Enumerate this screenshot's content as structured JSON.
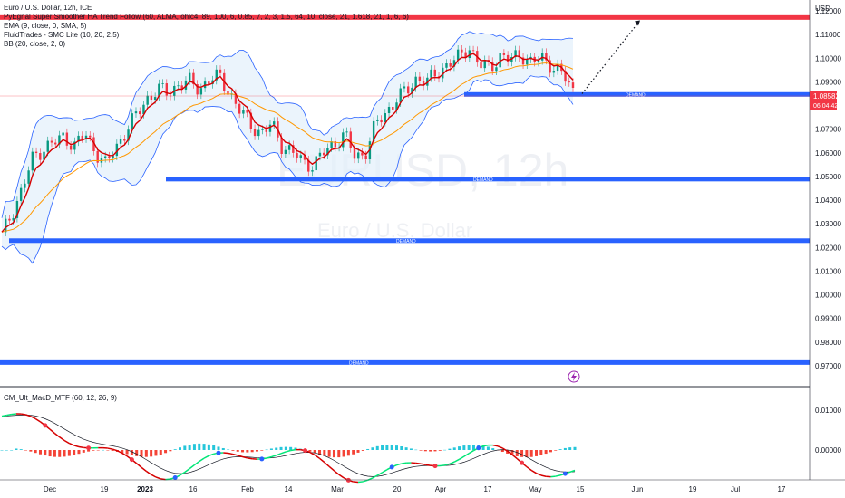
{
  "legend": {
    "title": "Euro / U.S. Dollar, 12h, ICE",
    "line2": "PyEgnal Super Smoother HA Trend Follow (60, ALMA, ohlc4, 89, 100, 6, 0.85, 7, 2, 3, 1.5, 64, 10, close, 21, 1.618, 21, 1, 6, 6)",
    "line3": "EMA (9, close, 0, SMA, 5)",
    "line4": "FluidTrades - SMC Lite  (10, 20, 2.5)",
    "line5": "BB (20, close, 2, 0)"
  },
  "watermark": {
    "symbol": "EURUSD, 12h",
    "name": "Euro / U.S. Dollar"
  },
  "price_label": {
    "value": "1.08582",
    "timer": "06:04:42"
  },
  "macd_label": "CM_Ult_MacD_MTF (60, 12, 26, 9)",
  "zone_label": "DEMAND",
  "colors": {
    "resistance": "#f23645",
    "demand": "#2962ff",
    "candle_up": "#089981",
    "candle_down": "#f23645",
    "ema": "#ff9800",
    "bb_line": "#2962ff",
    "bb_fill": "#e3effb",
    "smoother": "#d50000",
    "macd_line": "#d50000",
    "macd_line_up": "#00e676",
    "signal": "#131722",
    "hist_up": "#26c6da",
    "hist_down": "#f44336",
    "price_tag": "#f23645"
  },
  "chart_data": {
    "type": "candlestick",
    "axis": {
      "unit": "USD",
      "ylim": [
        0.965,
        1.12
      ],
      "y_ticks": [
        "1.12000",
        "1.11000",
        "1.10000",
        "1.09000",
        "1.07000",
        "1.06000",
        "1.05000",
        "1.04000",
        "1.03000",
        "1.02000",
        "1.01000",
        "1.00000",
        "0.99000",
        "0.98000",
        "0.97000"
      ],
      "x_ticks": [
        "Dec",
        "19",
        "2023",
        "16",
        "Feb",
        "14",
        "Mar",
        "20",
        "Apr",
        "17",
        "May",
        "15",
        "Jun",
        "19",
        "Jul",
        "17"
      ]
    },
    "resistance_level": 1.117,
    "demand_levels": [
      1.0845,
      1.0487,
      1.0227,
      0.9712
    ],
    "projection": {
      "from": 1.085,
      "to": 1.116
    },
    "close_series": [
      1.025,
      1.035,
      1.045,
      1.058,
      1.062,
      1.064,
      1.067,
      1.063,
      1.068,
      1.061,
      1.055,
      1.062,
      1.07,
      1.076,
      1.083,
      1.087,
      1.085,
      1.089,
      1.09,
      1.087,
      1.091,
      1.092,
      1.085,
      1.077,
      1.072,
      1.068,
      1.072,
      1.063,
      1.06,
      1.056,
      1.055,
      1.06,
      1.064,
      1.068,
      1.058,
      1.06,
      1.072,
      1.077,
      1.083,
      1.086,
      1.092,
      1.09,
      1.094,
      1.098,
      1.1,
      1.105,
      1.097,
      1.096,
      1.101,
      1.099,
      1.102,
      1.098,
      1.1,
      1.097,
      1.093,
      1.086
    ],
    "macd": {
      "y_ticks": [
        "0.01000",
        "0.00000"
      ],
      "ylim": [
        -0.006,
        0.013
      ]
    }
  }
}
